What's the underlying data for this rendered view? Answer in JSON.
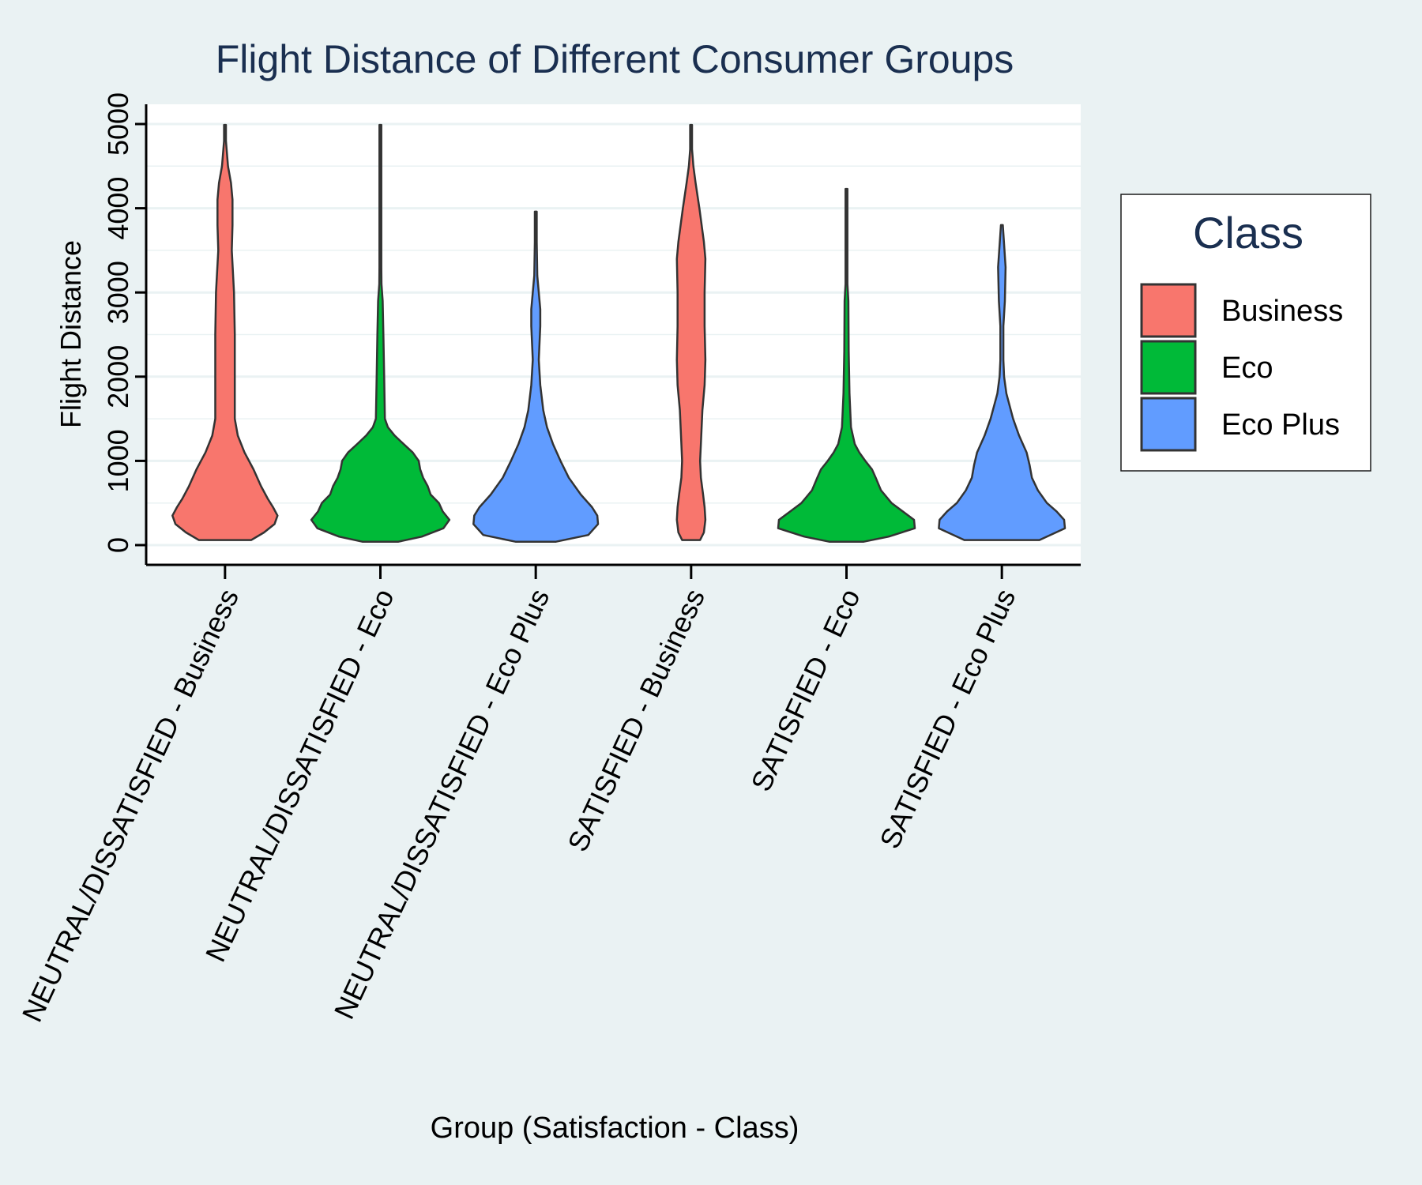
{
  "chart_data": {
    "type": "violin",
    "title": "Flight Distance of Different Consumer Groups",
    "xlabel": "Group (Satisfaction - Class)",
    "ylabel": "Flight Distance",
    "ylim": [
      -200,
      5150
    ],
    "yticks": [
      0,
      1000,
      2000,
      3000,
      4000,
      5000
    ],
    "grid": true,
    "legend": {
      "title": "Class",
      "position": "right",
      "entries": [
        "Business",
        "Eco",
        "Eco Plus"
      ]
    },
    "colors": {
      "Business": "#F8766D",
      "Eco": "#00BA38",
      "Eco Plus": "#619CFF",
      "background": "#EAF2F3",
      "panel": "#FFFFFF",
      "title": "#1A2F50",
      "grid": "#EAF2F3",
      "outline": "#333333"
    },
    "categories": [
      "NEUTRAL/DISSATISFIED - Business",
      "NEUTRAL/DISSATISFIED - Eco",
      "NEUTRAL/DISSATISFIED - Eco Plus",
      "SATISFIED - Business",
      "SATISFIED - Eco",
      "SATISFIED - Eco Plus"
    ],
    "series": [
      {
        "category": "NEUTRAL/DISSATISFIED - Business",
        "class": "Business",
        "min": 60,
        "max": 4990,
        "density": [
          [
            60,
            0.35
          ],
          [
            150,
            0.52
          ],
          [
            250,
            0.66
          ],
          [
            350,
            0.7
          ],
          [
            450,
            0.64
          ],
          [
            550,
            0.57
          ],
          [
            700,
            0.48
          ],
          [
            900,
            0.38
          ],
          [
            1100,
            0.26
          ],
          [
            1300,
            0.17
          ],
          [
            1500,
            0.13
          ],
          [
            2000,
            0.13
          ],
          [
            2500,
            0.13
          ],
          [
            3000,
            0.12
          ],
          [
            3500,
            0.09
          ],
          [
            3800,
            0.1
          ],
          [
            4100,
            0.1
          ],
          [
            4300,
            0.08
          ],
          [
            4500,
            0.04
          ],
          [
            4800,
            0.01
          ],
          [
            4990,
            0.01
          ]
        ]
      },
      {
        "category": "NEUTRAL/DISSATISFIED - Eco",
        "class": "Eco",
        "min": 40,
        "max": 4990,
        "density": [
          [
            40,
            0.24
          ],
          [
            100,
            0.55
          ],
          [
            200,
            0.84
          ],
          [
            300,
            0.92
          ],
          [
            400,
            0.83
          ],
          [
            500,
            0.78
          ],
          [
            600,
            0.67
          ],
          [
            700,
            0.63
          ],
          [
            800,
            0.57
          ],
          [
            900,
            0.53
          ],
          [
            1000,
            0.51
          ],
          [
            1100,
            0.43
          ],
          [
            1200,
            0.31
          ],
          [
            1300,
            0.19
          ],
          [
            1400,
            0.1
          ],
          [
            1500,
            0.06
          ],
          [
            2000,
            0.05
          ],
          [
            2500,
            0.04
          ],
          [
            2900,
            0.03
          ],
          [
            3100,
            0.015
          ],
          [
            3300,
            0.01
          ],
          [
            3600,
            0.005
          ],
          [
            4990,
            0.005
          ]
        ]
      },
      {
        "category": "NEUTRAL/DISSATISFIED - Eco Plus",
        "class": "Eco Plus",
        "min": 40,
        "max": 3960,
        "density": [
          [
            40,
            0.27
          ],
          [
            120,
            0.7
          ],
          [
            250,
            0.83
          ],
          [
            350,
            0.82
          ],
          [
            450,
            0.75
          ],
          [
            600,
            0.6
          ],
          [
            800,
            0.44
          ],
          [
            1000,
            0.33
          ],
          [
            1200,
            0.23
          ],
          [
            1400,
            0.15
          ],
          [
            1600,
            0.1
          ],
          [
            1900,
            0.06
          ],
          [
            2200,
            0.04
          ],
          [
            2600,
            0.06
          ],
          [
            2800,
            0.06
          ],
          [
            3000,
            0.04
          ],
          [
            3200,
            0.02
          ],
          [
            3600,
            0.01
          ],
          [
            3960,
            0.005
          ]
        ]
      },
      {
        "category": "SATISFIED - Business",
        "class": "Business",
        "min": 60,
        "max": 4990,
        "density": [
          [
            60,
            0.12
          ],
          [
            150,
            0.17
          ],
          [
            300,
            0.19
          ],
          [
            450,
            0.18
          ],
          [
            600,
            0.16
          ],
          [
            800,
            0.13
          ],
          [
            1000,
            0.12
          ],
          [
            1200,
            0.13
          ],
          [
            1600,
            0.15
          ],
          [
            1900,
            0.18
          ],
          [
            2200,
            0.19
          ],
          [
            2600,
            0.18
          ],
          [
            3000,
            0.18
          ],
          [
            3400,
            0.19
          ],
          [
            3600,
            0.17
          ],
          [
            4000,
            0.11
          ],
          [
            4300,
            0.06
          ],
          [
            4500,
            0.03
          ],
          [
            4700,
            0.01
          ],
          [
            4990,
            0.01
          ]
        ]
      },
      {
        "category": "SATISFIED - Eco",
        "class": "Eco",
        "min": 40,
        "max": 4230,
        "density": [
          [
            40,
            0.23
          ],
          [
            100,
            0.56
          ],
          [
            200,
            0.91
          ],
          [
            300,
            0.9
          ],
          [
            400,
            0.75
          ],
          [
            500,
            0.6
          ],
          [
            650,
            0.46
          ],
          [
            800,
            0.39
          ],
          [
            900,
            0.34
          ],
          [
            1000,
            0.25
          ],
          [
            1100,
            0.17
          ],
          [
            1200,
            0.11
          ],
          [
            1400,
            0.06
          ],
          [
            1800,
            0.04
          ],
          [
            2300,
            0.03
          ],
          [
            2900,
            0.025
          ],
          [
            3100,
            0.01
          ],
          [
            3300,
            0.005
          ],
          [
            4230,
            0.005
          ]
        ]
      },
      {
        "category": "SATISFIED - Eco Plus",
        "class": "Eco Plus",
        "min": 60,
        "max": 3800,
        "density": [
          [
            60,
            0.5
          ],
          [
            200,
            0.84
          ],
          [
            300,
            0.83
          ],
          [
            400,
            0.73
          ],
          [
            500,
            0.6
          ],
          [
            650,
            0.48
          ],
          [
            800,
            0.4
          ],
          [
            950,
            0.37
          ],
          [
            1100,
            0.33
          ],
          [
            1300,
            0.23
          ],
          [
            1500,
            0.15
          ],
          [
            1800,
            0.06
          ],
          [
            2000,
            0.03
          ],
          [
            2200,
            0.02
          ],
          [
            2600,
            0.02
          ],
          [
            2900,
            0.04
          ],
          [
            3300,
            0.05
          ],
          [
            3700,
            0.02
          ],
          [
            3800,
            0.01
          ]
        ]
      }
    ]
  }
}
